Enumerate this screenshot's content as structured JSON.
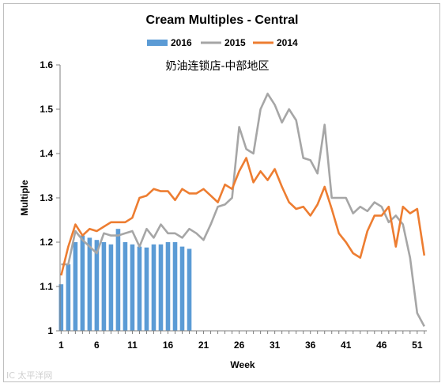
{
  "chart_data": {
    "type": "bar+line",
    "title": "Cream Multiples - Central",
    "annotation": "奶油连锁店-中部地区",
    "xlabel": "Week",
    "ylabel": "Multiple",
    "xlim": [
      1,
      52
    ],
    "ylim": [
      1.0,
      1.6
    ],
    "x_ticks": [
      1,
      6,
      11,
      16,
      21,
      26,
      31,
      36,
      41,
      46,
      51
    ],
    "y_ticks": [
      "1",
      "1.1",
      "1.2",
      "1.3",
      "1.4",
      "1.5",
      "1.6"
    ],
    "grid": false,
    "legend": {
      "placement": "top",
      "entries": [
        "2016",
        "2015",
        "2014"
      ]
    },
    "series": [
      {
        "name": "2016",
        "type": "bar",
        "color": "#5b9bd5",
        "x": [
          1,
          2,
          3,
          4,
          5,
          6,
          7,
          8,
          9,
          10,
          11,
          12,
          13,
          14,
          15,
          16,
          17,
          18,
          19
        ],
        "values": [
          1.105,
          1.15,
          1.2,
          1.215,
          1.21,
          1.205,
          1.2,
          1.195,
          1.23,
          1.2,
          1.195,
          1.19,
          1.188,
          1.195,
          1.195,
          1.2,
          1.2,
          1.19,
          1.185
        ]
      },
      {
        "name": "2015",
        "type": "line",
        "color": "#a6a6a6",
        "x": [
          1,
          2,
          3,
          4,
          5,
          6,
          7,
          8,
          9,
          10,
          11,
          12,
          13,
          14,
          15,
          16,
          17,
          18,
          19,
          20,
          21,
          22,
          23,
          24,
          25,
          26,
          27,
          28,
          29,
          30,
          31,
          32,
          33,
          34,
          35,
          36,
          37,
          38,
          39,
          40,
          41,
          42,
          43,
          44,
          45,
          46,
          47,
          48,
          49,
          50,
          51,
          52
        ],
        "values": [
          1.15,
          1.15,
          1.225,
          1.205,
          1.19,
          1.175,
          1.22,
          1.215,
          1.215,
          1.22,
          1.225,
          1.19,
          1.23,
          1.21,
          1.24,
          1.22,
          1.22,
          1.21,
          1.23,
          1.22,
          1.205,
          1.24,
          1.28,
          1.285,
          1.3,
          1.46,
          1.41,
          1.4,
          1.5,
          1.535,
          1.51,
          1.47,
          1.5,
          1.475,
          1.39,
          1.385,
          1.355,
          1.465,
          1.3,
          1.3,
          1.3,
          1.265,
          1.28,
          1.27,
          1.29,
          1.28,
          1.245,
          1.26,
          1.24,
          1.165,
          1.04,
          1.01
        ]
      },
      {
        "name": "2014",
        "type": "line",
        "color": "#ed7d31",
        "x": [
          1,
          2,
          3,
          4,
          5,
          6,
          7,
          8,
          9,
          10,
          11,
          12,
          13,
          14,
          15,
          16,
          17,
          18,
          19,
          20,
          21,
          22,
          23,
          24,
          25,
          26,
          27,
          28,
          29,
          30,
          31,
          32,
          33,
          34,
          35,
          36,
          37,
          38,
          39,
          40,
          41,
          42,
          43,
          44,
          45,
          46,
          47,
          48,
          49,
          50,
          51,
          52
        ],
        "values": [
          1.125,
          1.19,
          1.24,
          1.215,
          1.23,
          1.225,
          1.235,
          1.245,
          1.245,
          1.245,
          1.255,
          1.3,
          1.305,
          1.32,
          1.315,
          1.315,
          1.295,
          1.32,
          1.31,
          1.31,
          1.32,
          1.305,
          1.29,
          1.33,
          1.32,
          1.36,
          1.39,
          1.335,
          1.36,
          1.34,
          1.365,
          1.325,
          1.29,
          1.275,
          1.28,
          1.26,
          1.285,
          1.325,
          1.275,
          1.22,
          1.2,
          1.175,
          1.165,
          1.225,
          1.26,
          1.26,
          1.28,
          1.19,
          1.28,
          1.265,
          1.275,
          1.17
        ]
      }
    ]
  },
  "watermark": "IC 太平洋网"
}
